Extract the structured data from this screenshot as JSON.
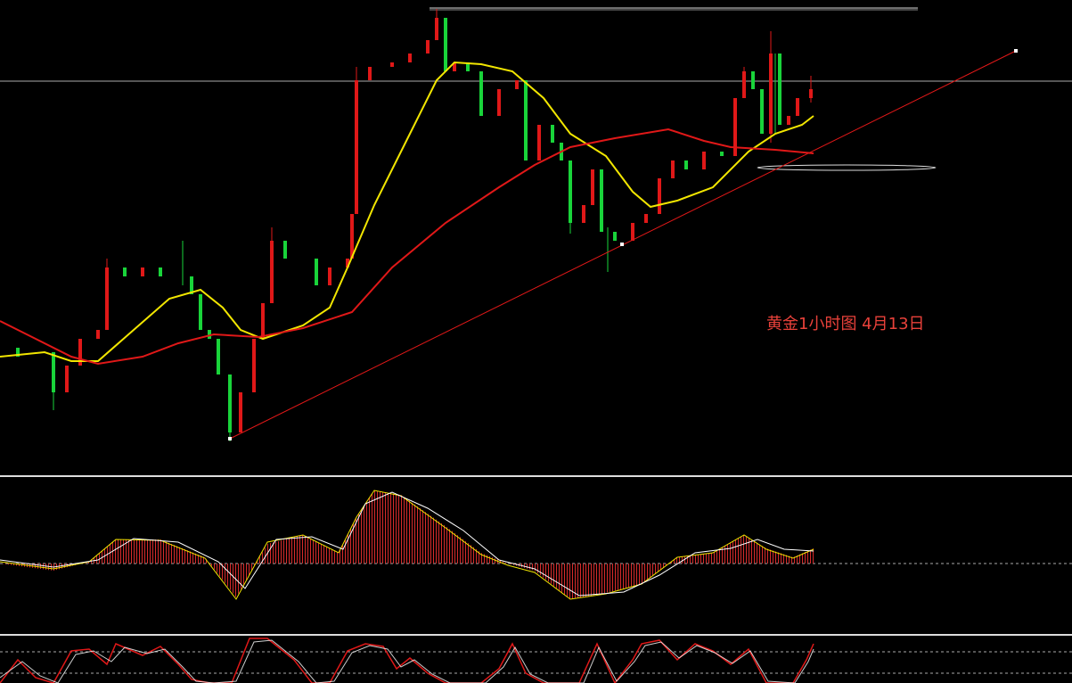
{
  "annotation": "黄金1小时图 4月13日"
}
